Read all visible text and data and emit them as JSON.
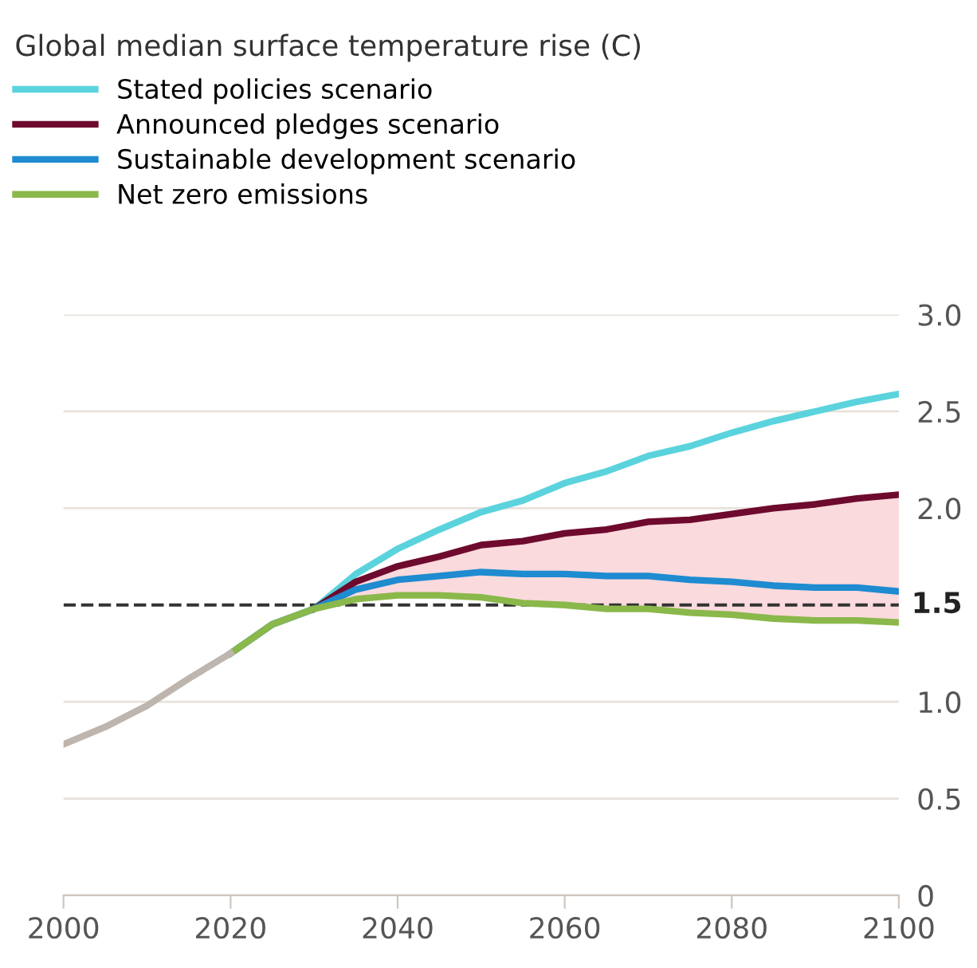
{
  "chart_data": {
    "type": "line",
    "title": "Global median surface temperature rise (C)",
    "x": [
      2020,
      2025,
      2030,
      2035,
      2040,
      2045,
      2050,
      2055,
      2060,
      2065,
      2070,
      2075,
      2080,
      2085,
      2090,
      2095,
      2100
    ],
    "series": [
      {
        "name": "Stated policies scenario",
        "color": "#5bd3dd",
        "values": [
          1.25,
          1.4,
          1.48,
          1.66,
          1.79,
          1.89,
          1.98,
          2.04,
          2.13,
          2.19,
          2.27,
          2.32,
          2.39,
          2.45,
          2.5,
          2.55,
          2.59
        ]
      },
      {
        "name": "Announced pledges scenario",
        "color": "#6e0a2e",
        "values": [
          null,
          null,
          1.48,
          1.62,
          1.7,
          1.75,
          1.81,
          1.83,
          1.87,
          1.89,
          1.93,
          1.94,
          1.97,
          2.0,
          2.02,
          2.05,
          2.07
        ],
        "lower": [
          1.25,
          1.4,
          1.48,
          1.53,
          1.55,
          1.55,
          1.54,
          1.51,
          1.5,
          1.48,
          1.48,
          1.46,
          1.45,
          1.43,
          1.42,
          1.42,
          1.41
        ],
        "upper": [
          1.25,
          1.4,
          1.48,
          1.62,
          1.7,
          1.75,
          1.81,
          1.83,
          1.87,
          1.89,
          1.93,
          1.94,
          1.97,
          2.0,
          2.02,
          2.05,
          2.07
        ]
      },
      {
        "name": "Sustainable development scenario",
        "color": "#1f8bd0",
        "values": [
          1.25,
          1.4,
          1.48,
          1.58,
          1.63,
          1.65,
          1.67,
          1.66,
          1.66,
          1.65,
          1.65,
          1.63,
          1.62,
          1.6,
          1.59,
          1.59,
          1.57
        ]
      },
      {
        "name": "Net zero emissions",
        "color": "#8ab84a",
        "values": [
          1.25,
          1.4,
          1.48,
          1.53,
          1.55,
          1.55,
          1.54,
          1.51,
          1.5,
          1.48,
          1.48,
          1.46,
          1.45,
          1.43,
          1.42,
          1.42,
          1.41
        ]
      },
      {
        "color": "#bdb5ae",
        "x": [
          2000,
          2005,
          2010,
          2015,
          2020
        ],
        "values": [
          0.78,
          0.87,
          0.98,
          1.12,
          1.25
        ]
      }
    ],
    "xlim": [
      2000,
      2100
    ],
    "xticks": [
      2000,
      2020,
      2040,
      2060,
      2080,
      2100
    ],
    "ylim": [
      0,
      3.0
    ],
    "yticks": [
      {
        "value": 0,
        "label": "0"
      },
      {
        "value": 0.5,
        "label": "0.5"
      },
      {
        "value": 1.0,
        "label": "1.0"
      },
      {
        "value": 2.0,
        "label": "2.0"
      },
      {
        "value": 2.5,
        "label": "2.5"
      },
      {
        "value": 3.0,
        "label": "3.0"
      }
    ],
    "ref_lines": [
      {
        "axis": "y",
        "value": 1.5,
        "label": "1.5",
        "color": "#333333",
        "line_style": "dashed"
      }
    ],
    "grid": "y",
    "legend": "top left"
  }
}
